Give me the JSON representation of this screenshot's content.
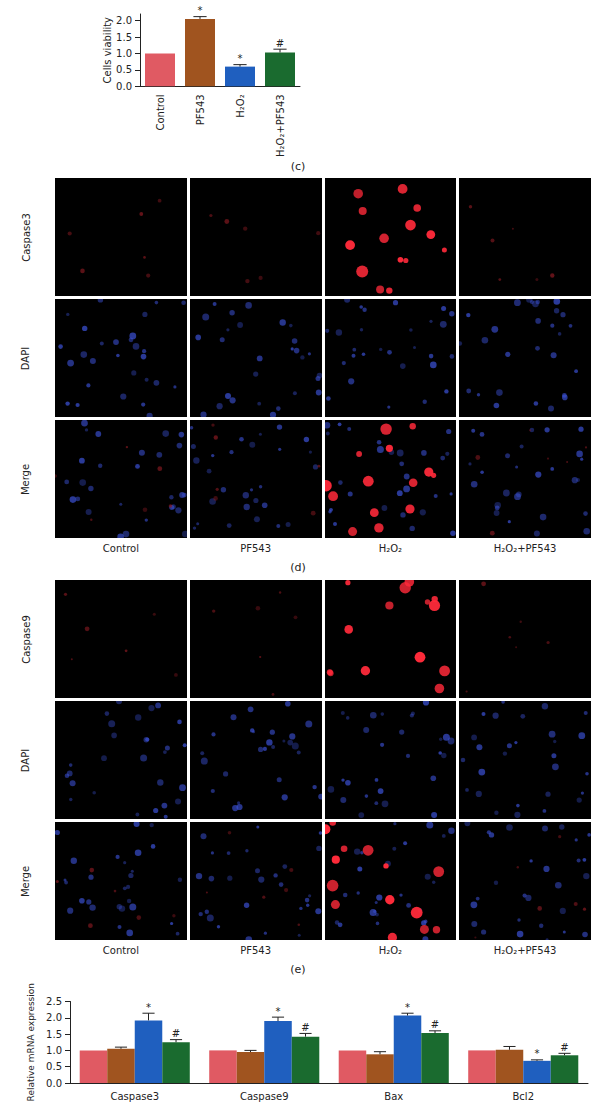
{
  "chart_data": [
    {
      "type": "bar",
      "caption": "(c)",
      "y_label": "Cells viability",
      "categories": [
        "Control",
        "PF543",
        "H₂O₂",
        "H₂O₂+PF543"
      ],
      "values": [
        1.0,
        2.05,
        0.6,
        1.03
      ],
      "errors": [
        0,
        0.07,
        0.06,
        0.1
      ],
      "annotations": [
        null,
        "*",
        "*",
        "#"
      ],
      "colors": [
        "#e05a63",
        "#a0541f",
        "#1f5fbf",
        "#1a6b2f"
      ],
      "ylim": [
        0,
        2.2
      ],
      "yticks": [
        {
          "value": 0,
          "label": "0.0"
        },
        {
          "value": 0.5,
          "label": "0.5"
        },
        {
          "value": 1,
          "label": "1.0"
        },
        {
          "value": 1.5,
          "label": "1.5"
        },
        {
          "value": 2,
          "label": "2.0"
        }
      ],
      "grid": false
    },
    {
      "type": "bar",
      "y_label": "Relative mRNA expression",
      "categories": [
        "Caspase3",
        "Caspase9",
        "Bax",
        "Bcl2"
      ],
      "series": [
        {
          "color": "#e05a63",
          "values": [
            1.0,
            1.0,
            1.0,
            1.0
          ],
          "errors": [
            0,
            0,
            0,
            0
          ],
          "annotations": [
            null,
            null,
            null,
            null
          ]
        },
        {
          "color": "#a0541f",
          "values": [
            1.05,
            0.95,
            0.88,
            1.02
          ],
          "errors": [
            0.05,
            0.05,
            0.08,
            0.1
          ],
          "annotations": [
            null,
            null,
            null,
            null
          ]
        },
        {
          "color": "#1f5fbf",
          "values": [
            1.92,
            1.9,
            2.07,
            0.68
          ],
          "errors": [
            0.22,
            0.12,
            0.07,
            0.03
          ],
          "annotations": [
            "*",
            "*",
            "*",
            "*"
          ]
        },
        {
          "color": "#1a6b2f",
          "values": [
            1.25,
            1.42,
            1.53,
            0.85
          ],
          "errors": [
            0.08,
            0.1,
            0.07,
            0.06
          ],
          "annotations": [
            "#",
            "#",
            "#",
            "#"
          ]
        }
      ],
      "ylim": [
        0,
        2.5
      ],
      "yticks": [
        {
          "value": 0,
          "label": "0.0"
        },
        {
          "value": 0.5,
          "label": "0.5"
        },
        {
          "value": 1,
          "label": "1.0"
        },
        {
          "value": 1.5,
          "label": "1.5"
        },
        {
          "value": 2,
          "label": "2.0"
        },
        {
          "value": 2.5,
          "label": "2.5"
        }
      ],
      "grid": false
    }
  ],
  "image_panels": [
    {
      "caption": "(d)",
      "row_labels": [
        "Caspase3",
        "DAPI",
        "Merge"
      ],
      "column_labels": [
        "Control",
        "PF543",
        "H₂O₂",
        "H₂O₂+PF543"
      ]
    },
    {
      "caption": "(e)",
      "row_labels": [
        "Caspase9",
        "DAPI",
        "Merge"
      ],
      "column_labels": [
        "Control",
        "PF543",
        "H₂O₂",
        "H₂O₂+PF543"
      ]
    }
  ]
}
